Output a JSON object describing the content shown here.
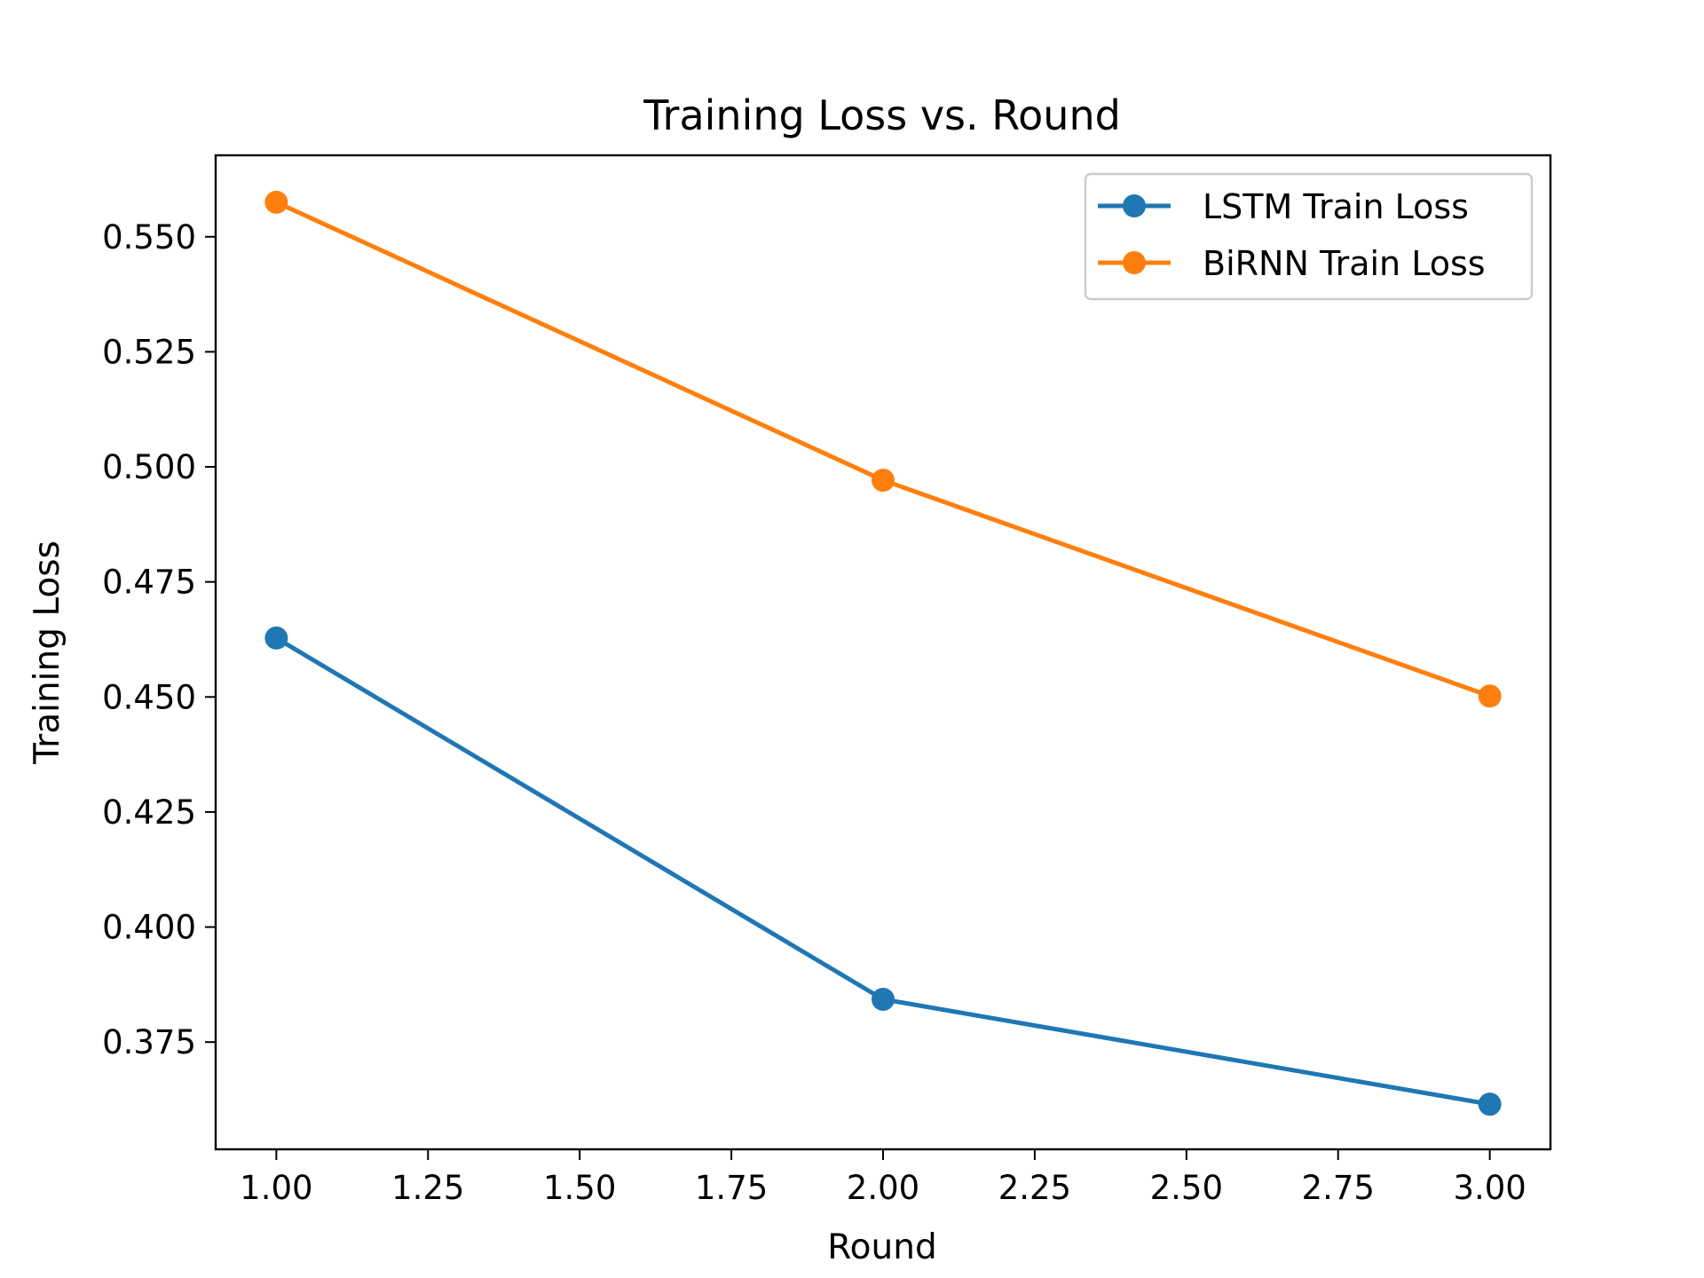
{
  "chart_data": {
    "type": "line",
    "title": "Training Loss vs. Round",
    "xlabel": "Round",
    "ylabel": "Training Loss",
    "x": [
      1.0,
      2.0,
      3.0
    ],
    "xlim": [
      0.9,
      3.1
    ],
    "ylim": [
      0.3517,
      0.5677
    ],
    "xticks": [
      1.0,
      1.25,
      1.5,
      1.75,
      2.0,
      2.25,
      2.5,
      2.75,
      3.0
    ],
    "xtick_labels": [
      "1.00",
      "1.25",
      "1.50",
      "1.75",
      "2.00",
      "2.25",
      "2.50",
      "2.75",
      "3.00"
    ],
    "yticks": [
      0.375,
      0.4,
      0.425,
      0.45,
      0.475,
      0.5,
      0.525,
      0.55
    ],
    "ytick_labels": [
      "0.375",
      "0.400",
      "0.425",
      "0.450",
      "0.475",
      "0.500",
      "0.525",
      "0.550"
    ],
    "grid": false,
    "legend_position": "top-right",
    "series": [
      {
        "name": "LSTM Train Loss",
        "color": "#1f77b4",
        "marker": "circle",
        "values": [
          0.4628,
          0.3843,
          0.3615
        ]
      },
      {
        "name": "BiRNN Train Loss",
        "color": "#ff7f0e",
        "marker": "circle",
        "values": [
          0.5575,
          0.4971,
          0.4502
        ]
      }
    ]
  }
}
